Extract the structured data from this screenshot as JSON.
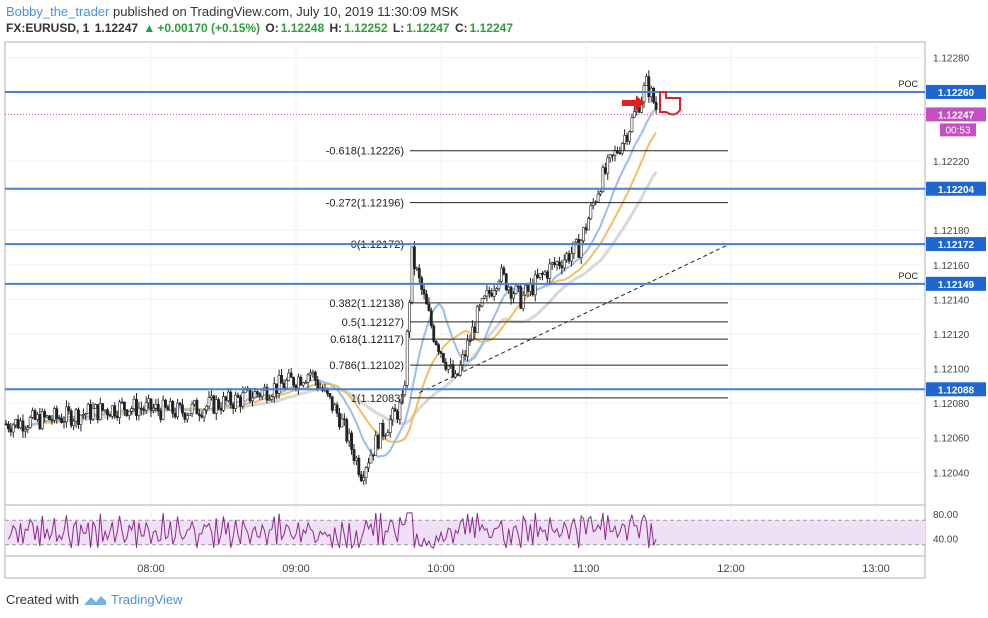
{
  "header": {
    "user": "Bobby_the_trader",
    "published": "published on TradingView.com, July 10, 2019 11:30:09 MSK"
  },
  "ticker": {
    "symbol": "FX:EURUSD, 1",
    "last": "1.12247",
    "change": "+0.00170 (+0.15%)",
    "o_label": "O:",
    "o": "1.12248",
    "h_label": "H:",
    "h": "1.12252",
    "l_label": "L:",
    "l": "1.12247",
    "c_label": "C:",
    "c": "1.12247"
  },
  "footer": {
    "created_with": "Created with",
    "brand": "TradingView"
  },
  "colors": {
    "up": "#2e9e3a",
    "level": "#4a7fd4",
    "label_bg": "#1f66d1",
    "price_tag": "#c44fc3",
    "rsi": "#8c2a8c",
    "rsi_band": "#efe0f8"
  },
  "chart_data": {
    "type": "candlestick",
    "price_axis": {
      "min": 1.12028,
      "max": 1.12286,
      "ticks": [
        "1.12280",
        "1.12220",
        "1.12180",
        "1.12160",
        "1.12140",
        "1.12120",
        "1.12100",
        "1.12080",
        "1.12060",
        "1.12040"
      ]
    },
    "time_axis": {
      "ticks": [
        "08:00",
        "09:00",
        "10:00",
        "11:00",
        "12:00",
        "13:00"
      ]
    },
    "levels": [
      {
        "price": 1.1226,
        "label": "1.12260",
        "poc": "POC"
      },
      {
        "price": 1.12204,
        "label": "1.12204",
        "poc": ""
      },
      {
        "price": 1.12172,
        "label": "1.12172",
        "poc": ""
      },
      {
        "price": 1.12149,
        "label": "1.12149",
        "poc": "POC"
      },
      {
        "price": 1.12088,
        "label": "1.12088",
        "poc": ""
      }
    ],
    "current_price": {
      "label": "1.12247",
      "countdown": "00:53"
    },
    "fibonacci": [
      {
        "label": "-0.618(1.12226)",
        "price": 1.12226
      },
      {
        "label": "-0.272(1.12196)",
        "price": 1.12196
      },
      {
        "label": "0(1.12172)",
        "price": 1.12172
      },
      {
        "label": "0.382(1.12138)",
        "price": 1.12138
      },
      {
        "label": "0.5(1.12127)",
        "price": 1.12127
      },
      {
        "label": "0.618(1.12117)",
        "price": 1.12117
      },
      {
        "label": "0.786(1.12102)",
        "price": 1.12102
      },
      {
        "label": "1(1.12083)",
        "price": 1.12083
      }
    ],
    "rsi": {
      "ticks": [
        "80.00",
        "40.00"
      ],
      "upper": 70,
      "lower": 30
    }
  }
}
